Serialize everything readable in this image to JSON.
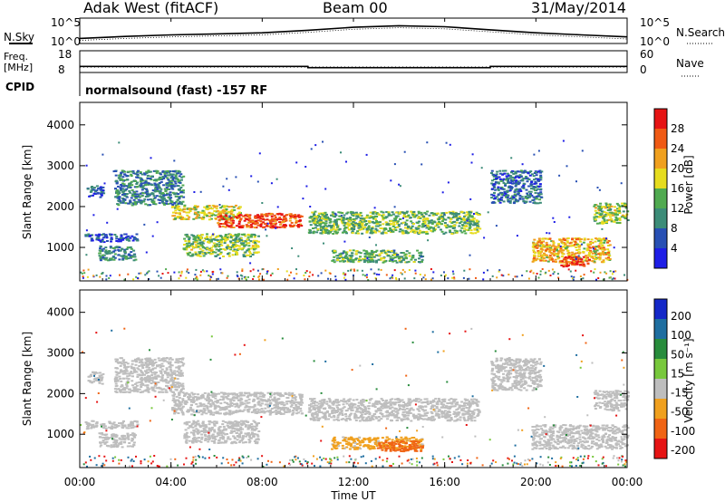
{
  "header": {
    "site": "Adak West (fitACF)",
    "beam": "Beam 00",
    "date": "31/May/2014"
  },
  "labels": {
    "nsky": "N.Sky",
    "nsearch": "N.Search",
    "freq_line1": "Freq.",
    "freq_line2": "[MHz]",
    "nave": "Nave",
    "cpid": "CPID",
    "cpid_text": "normalsound (fast) -157 RF",
    "ylabel": "Slant Range [km]",
    "xlabel": "Time UT",
    "power_label": "Power [dB]",
    "velocity_label": "Velocity [m s⁻¹]"
  },
  "ticks": {
    "noise_left": [
      "10^5",
      "10^0"
    ],
    "noise_right": [
      "10^5",
      "10^0"
    ],
    "freq_left": [
      "18",
      "8"
    ],
    "nave_right": [
      "60",
      "0"
    ],
    "range": [
      "1000",
      "2000",
      "3000",
      "4000"
    ],
    "time": [
      "00:00",
      "04:00",
      "08:00",
      "12:00",
      "16:00",
      "20:00",
      "00:00"
    ],
    "power": [
      "4",
      "8",
      "12",
      "16",
      "20",
      "24",
      "28"
    ],
    "velocity": [
      "200",
      "100",
      "50",
      "15",
      "-15",
      "-50",
      "-100",
      "-200"
    ]
  },
  "colors": {
    "power_scale": [
      "#1e1ee6",
      "#2850b4",
      "#3c8c78",
      "#50aa50",
      "#e6dc1e",
      "#f0a01e",
      "#f05a14",
      "#e61414"
    ],
    "velocity_scale": [
      "#1428c8",
      "#1e6ea0",
      "#288c3c",
      "#78c83c",
      "#bebebe",
      "#f0a01e",
      "#f06414",
      "#e61414"
    ]
  },
  "chart_data": [
    {
      "type": "line",
      "name": "noise",
      "x_unit": "hours UT",
      "xlim": [
        0,
        24
      ],
      "ylim_log10": [
        0,
        5
      ],
      "x": [
        0,
        2,
        4,
        6,
        8,
        10,
        12,
        14,
        16,
        18,
        20,
        22,
        24
      ],
      "nsky_log10": [
        1.0,
        1.4,
        1.7,
        1.9,
        2.1,
        2.6,
        3.2,
        3.5,
        3.3,
        2.7,
        2.1,
        1.7,
        1.3
      ],
      "nsearch_log10": [
        0.6,
        1.0,
        1.3,
        1.5,
        1.7,
        2.2,
        2.8,
        3.1,
        2.9,
        2.3,
        1.7,
        1.3,
        0.9
      ]
    },
    {
      "type": "line",
      "name": "frequency-nave",
      "x_unit": "hours UT",
      "xlim": [
        0,
        24
      ],
      "freq_ylim": [
        8,
        18
      ],
      "nave_ylim": [
        0,
        60
      ],
      "freq_mhz": [
        {
          "x0": 0,
          "x1": 10,
          "v": 10.8
        },
        {
          "x0": 10,
          "x1": 18,
          "v": 10.2
        },
        {
          "x0": 18,
          "x1": 24,
          "v": 10.8
        }
      ],
      "nave": 15
    },
    {
      "type": "heatmap",
      "name": "power",
      "x_unit": "hours UT",
      "xlim": [
        0,
        24
      ],
      "ylim": [
        180,
        4550
      ],
      "zlim": [
        0,
        30
      ],
      "z_unit": "dB",
      "regions": [
        {
          "t0": 0.3,
          "t1": 1.0,
          "r0": 2250,
          "r1": 2550,
          "p": 6
        },
        {
          "t0": 0.2,
          "t1": 2.5,
          "r0": 1150,
          "r1": 1350,
          "p": 5
        },
        {
          "t0": 1.5,
          "t1": 4.5,
          "r0": 2050,
          "r1": 2900,
          "p": 9
        },
        {
          "t0": 4.0,
          "t1": 7.0,
          "r0": 1700,
          "r1": 2050,
          "p": 17
        },
        {
          "t0": 6.0,
          "t1": 9.7,
          "r0": 1500,
          "r1": 1850,
          "p": 26
        },
        {
          "t0": 4.5,
          "t1": 7.8,
          "r0": 800,
          "r1": 1350,
          "p": 14
        },
        {
          "t0": 0.8,
          "t1": 2.4,
          "r0": 700,
          "r1": 1050,
          "p": 10
        },
        {
          "t0": 10.0,
          "t1": 17.5,
          "r0": 1350,
          "r1": 1900,
          "p": 13
        },
        {
          "t0": 11.0,
          "t1": 15.0,
          "r0": 650,
          "r1": 950,
          "p": 12
        },
        {
          "t0": 18.0,
          "t1": 20.2,
          "r0": 2100,
          "r1": 2900,
          "p": 7
        },
        {
          "t0": 19.8,
          "t1": 23.2,
          "r0": 650,
          "r1": 1250,
          "p": 19
        },
        {
          "t0": 21.0,
          "t1": 22.3,
          "r0": 550,
          "r1": 800,
          "p": 26
        },
        {
          "t0": 22.5,
          "t1": 24.0,
          "r0": 1600,
          "r1": 2100,
          "p": 15
        }
      ]
    },
    {
      "type": "heatmap",
      "name": "velocity",
      "x_unit": "hours UT",
      "xlim": [
        0,
        24
      ],
      "ylim": [
        180,
        4550
      ],
      "zlim": [
        -250,
        250
      ],
      "z_unit": "m s-1",
      "regions": [
        {
          "t0": 0.3,
          "t1": 1.0,
          "r0": 2250,
          "r1": 2550,
          "v": 0
        },
        {
          "t0": 0.2,
          "t1": 2.5,
          "r0": 1150,
          "r1": 1350,
          "v": 0
        },
        {
          "t0": 1.5,
          "t1": 4.5,
          "r0": 2050,
          "r1": 2900,
          "v": 0
        },
        {
          "t0": 4.0,
          "t1": 9.7,
          "r0": 1500,
          "r1": 2050,
          "v": 0
        },
        {
          "t0": 4.5,
          "t1": 7.8,
          "r0": 800,
          "r1": 1350,
          "v": 0
        },
        {
          "t0": 0.8,
          "t1": 2.4,
          "r0": 700,
          "r1": 1050,
          "v": 0
        },
        {
          "t0": 10.0,
          "t1": 17.5,
          "r0": 1350,
          "r1": 1900,
          "v": -5
        },
        {
          "t0": 11.0,
          "t1": 15.0,
          "r0": 650,
          "r1": 950,
          "v": -20
        },
        {
          "t0": 13.0,
          "t1": 15.0,
          "r0": 600,
          "r1": 850,
          "v": -60
        },
        {
          "t0": 18.0,
          "t1": 20.2,
          "r0": 2100,
          "r1": 2900,
          "v": 0
        },
        {
          "t0": 19.8,
          "t1": 24.0,
          "r0": 650,
          "r1": 1250,
          "v": 0
        },
        {
          "t0": 22.5,
          "t1": 24.0,
          "r0": 1600,
          "r1": 2100,
          "v": 0
        }
      ]
    }
  ]
}
